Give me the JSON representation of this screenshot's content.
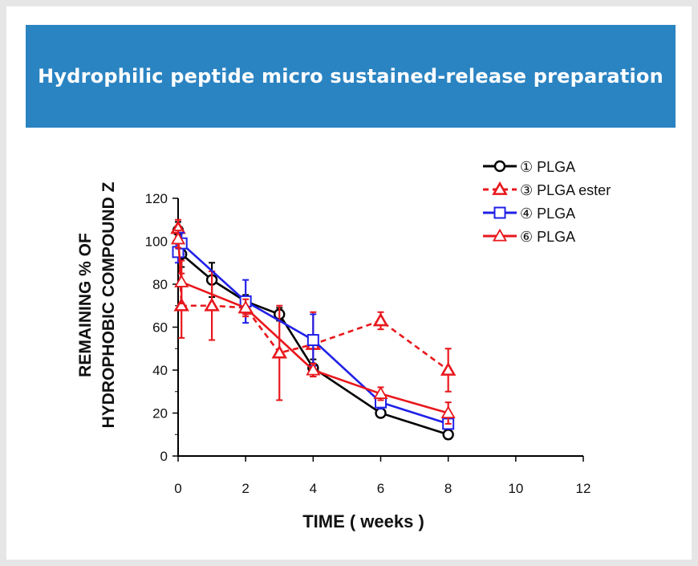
{
  "header": {
    "title": "Hydrophilic peptide micro sustained-release preparation"
  },
  "chart_data": {
    "type": "line",
    "title": "",
    "xlabel": "TIME ( weeks )",
    "ylabel_line1": "REMAINING % OF",
    "ylabel_line2": "HYDROPHOBIC COMPOUND Z",
    "xlim": [
      0,
      12
    ],
    "ylim": [
      0,
      120
    ],
    "x_ticks": [
      "0",
      "2",
      "4",
      "6",
      "8",
      "10",
      "12"
    ],
    "y_ticks": [
      "0",
      "20",
      "40",
      "60",
      "80",
      "100",
      "120"
    ],
    "grid": false,
    "legend_placement": "top-right",
    "series": [
      {
        "name": "① PLGA",
        "color": "#000000",
        "marker": "circle",
        "dashed": false,
        "x": [
          0,
          0.1,
          1,
          2,
          3,
          4,
          6,
          8
        ],
        "y": [
          105,
          94,
          82,
          72,
          66,
          41,
          20,
          10
        ],
        "err": [
          4,
          6,
          8,
          3,
          3,
          4,
          2,
          2
        ]
      },
      {
        "name": "③ PLGA ester",
        "color": "#e8171c",
        "marker": "triangle",
        "dashed": true,
        "x": [
          0,
          0.1,
          1,
          2,
          3,
          4,
          6,
          8
        ],
        "y": [
          106,
          70,
          70,
          69,
          48,
          52,
          63,
          40
        ],
        "err": [
          4,
          15,
          16,
          3,
          22,
          15,
          4,
          10
        ]
      },
      {
        "name": "④ PLGA",
        "color": "#2020e8",
        "marker": "square",
        "dashed": false,
        "x": [
          0,
          0.1,
          2,
          4,
          6,
          8
        ],
        "y": [
          95,
          99,
          72,
          54,
          25,
          15
        ],
        "err": [
          5,
          5,
          10,
          12,
          3,
          2
        ]
      },
      {
        "name": "⑥ PLGA",
        "color": "#e8171c",
        "marker": "triangle-open",
        "dashed": false,
        "x": [
          0,
          0.1,
          2,
          4,
          6,
          8
        ],
        "y": [
          101,
          81,
          69,
          40,
          29,
          20
        ],
        "err": [
          4,
          10,
          4,
          3,
          3,
          5
        ]
      }
    ]
  }
}
